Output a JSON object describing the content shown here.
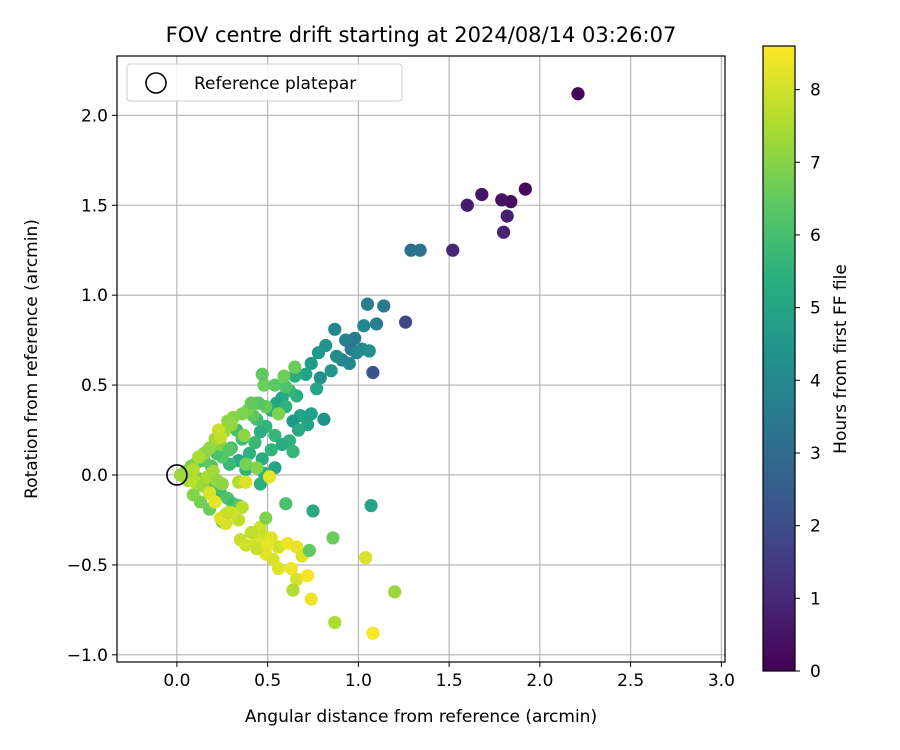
{
  "chart_data": {
    "type": "scatter",
    "title": "FOV centre drift starting at 2024/08/14 03:26:07",
    "xlabel": "Angular distance from reference (arcmin)",
    "ylabel": "Rotation from reference (arcmin)",
    "xlim": [
      -0.33,
      3.02
    ],
    "ylim": [
      -1.04,
      2.33
    ],
    "xticks": [
      "0.0",
      "0.5",
      "1.0",
      "1.5",
      "2.0",
      "2.5",
      "3.0"
    ],
    "yticks": [
      "−1.0",
      "−0.5",
      "0.0",
      "0.5",
      "1.0",
      "1.5",
      "2.0"
    ],
    "grid": true,
    "legend": {
      "placement": "top-left",
      "entries": [
        "Reference platepar"
      ]
    },
    "colorbar": {
      "label": "Hours from first FF file",
      "colormap": "viridis",
      "range": [
        0,
        8.6
      ],
      "ticks": [
        "0",
        "1",
        "2",
        "3",
        "4",
        "5",
        "6",
        "7",
        "8"
      ]
    },
    "reference_point": {
      "x": 0.0,
      "y": 0.0
    },
    "points": [
      [
        2.21,
        2.12,
        0.1
      ],
      [
        1.92,
        1.59,
        0.2
      ],
      [
        1.84,
        1.52,
        0.3
      ],
      [
        1.79,
        1.53,
        0.4
      ],
      [
        1.68,
        1.56,
        0.5
      ],
      [
        1.6,
        1.5,
        0.6
      ],
      [
        1.82,
        1.44,
        0.7
      ],
      [
        1.8,
        1.35,
        0.8
      ],
      [
        1.52,
        1.25,
        0.9
      ],
      [
        1.26,
        0.85,
        1.9
      ],
      [
        1.08,
        0.57,
        2.2
      ],
      [
        1.29,
        1.25,
        3.2
      ],
      [
        1.34,
        1.25,
        3.3
      ],
      [
        1.05,
        0.95,
        3.6
      ],
      [
        1.14,
        0.94,
        3.5
      ],
      [
        0.87,
        0.81,
        4.0
      ],
      [
        1.1,
        0.84,
        3.7
      ],
      [
        1.03,
        0.83,
        4.0
      ],
      [
        0.98,
        0.76,
        3.6
      ],
      [
        0.93,
        0.75,
        3.8
      ],
      [
        0.96,
        0.7,
        3.4
      ],
      [
        0.99,
        0.68,
        3.9
      ],
      [
        0.91,
        0.64,
        3.9
      ],
      [
        1.02,
        0.7,
        4.1
      ],
      [
        1.06,
        0.69,
        4.3
      ],
      [
        0.95,
        0.62,
        4.0
      ],
      [
        0.88,
        0.66,
        4.2
      ],
      [
        0.82,
        0.72,
        4.4
      ],
      [
        0.78,
        0.68,
        4.6
      ],
      [
        0.85,
        0.58,
        4.5
      ],
      [
        0.79,
        0.54,
        4.3
      ],
      [
        0.74,
        0.62,
        4.7
      ],
      [
        0.71,
        0.56,
        5.0
      ],
      [
        0.77,
        0.48,
        5.1
      ],
      [
        0.65,
        0.55,
        5.3
      ],
      [
        0.66,
        0.44,
        5.4
      ],
      [
        0.62,
        0.47,
        5.6
      ],
      [
        0.58,
        0.43,
        5.2
      ],
      [
        0.55,
        0.4,
        5.0
      ],
      [
        0.52,
        0.36,
        5.4
      ],
      [
        0.6,
        0.38,
        5.5
      ],
      [
        0.68,
        0.33,
        5.0
      ],
      [
        0.74,
        0.34,
        4.8
      ],
      [
        0.64,
        0.3,
        4.6
      ],
      [
        0.72,
        0.28,
        5.0
      ],
      [
        0.81,
        0.31,
        4.4
      ],
      [
        0.67,
        0.25,
        5.2
      ],
      [
        0.62,
        0.19,
        5.5
      ],
      [
        0.54,
        0.22,
        5.7
      ],
      [
        0.49,
        0.27,
        5.6
      ],
      [
        0.44,
        0.31,
        5.9
      ],
      [
        0.46,
        0.24,
        5.4
      ],
      [
        0.52,
        0.14,
        5.6
      ],
      [
        0.47,
        0.09,
        5.3
      ],
      [
        0.43,
        0.18,
        5.8
      ],
      [
        0.4,
        0.12,
        5.5
      ],
      [
        0.36,
        0.2,
        5.9
      ],
      [
        0.33,
        0.25,
        6.0
      ],
      [
        0.38,
        0.03,
        5.6
      ],
      [
        0.34,
        0.08,
        5.2
      ],
      [
        0.29,
        0.06,
        5.8
      ],
      [
        0.3,
        0.15,
        6.0
      ],
      [
        0.48,
        0.01,
        5.4
      ],
      [
        0.54,
        0.04,
        5.0
      ],
      [
        0.58,
        0.17,
        5.3
      ],
      [
        0.64,
        0.13,
        5.7
      ],
      [
        0.46,
        -0.05,
        5.4
      ],
      [
        0.25,
        0.1,
        6.3
      ],
      [
        0.22,
        0.12,
        6.1
      ],
      [
        0.19,
        0.05,
        6.2
      ],
      [
        0.15,
        0.08,
        6.5
      ],
      [
        0.11,
        0.07,
        6.3
      ],
      [
        0.08,
        0.05,
        6.8
      ],
      [
        0.05,
        0.02,
        7.0
      ],
      [
        0.12,
        -0.02,
        6.9
      ],
      [
        0.16,
        -0.05,
        6.6
      ],
      [
        0.2,
        -0.08,
        6.4
      ],
      [
        0.24,
        -0.1,
        6.0
      ],
      [
        0.28,
        -0.13,
        6.2
      ],
      [
        0.31,
        -0.16,
        5.9
      ],
      [
        0.34,
        -0.17,
        6.3
      ],
      [
        0.21,
        -0.14,
        5.8
      ],
      [
        0.18,
        -0.19,
        6.6
      ],
      [
        0.13,
        -0.15,
        6.8
      ],
      [
        0.09,
        -0.11,
        7.0
      ],
      [
        0.27,
        -0.22,
        6.5
      ],
      [
        0.25,
        -0.26,
        6.7
      ],
      [
        0.48,
        0.5,
        6.6
      ],
      [
        0.54,
        0.5,
        6.4
      ],
      [
        0.6,
        0.49,
        6.2
      ],
      [
        0.49,
        0.38,
        6.5
      ],
      [
        0.44,
        0.4,
        6.7
      ],
      [
        0.42,
        0.33,
        6.4
      ],
      [
        0.39,
        0.36,
        6.8
      ],
      [
        0.36,
        0.34,
        6.9
      ],
      [
        0.31,
        0.32,
        7.0
      ],
      [
        0.28,
        0.3,
        7.1
      ],
      [
        0.26,
        0.24,
        7.3
      ],
      [
        0.24,
        0.17,
        7.0
      ],
      [
        0.21,
        0.2,
        7.4
      ],
      [
        0.18,
        0.15,
        7.2
      ],
      [
        0.15,
        0.12,
        7.1
      ],
      [
        0.12,
        0.1,
        7.5
      ],
      [
        0.09,
        0.03,
        7.6
      ],
      [
        0.06,
        -0.03,
        7.4
      ],
      [
        0.1,
        -0.04,
        7.7
      ],
      [
        0.14,
        -0.06,
        7.3
      ],
      [
        0.17,
        -0.01,
        7.5
      ],
      [
        0.2,
        0.02,
        7.4
      ],
      [
        0.22,
        -0.03,
        7.2
      ],
      [
        0.25,
        -0.05,
        7.1
      ],
      [
        0.24,
        0.21,
        7.8
      ],
      [
        0.23,
        0.25,
        7.9
      ],
      [
        0.37,
        0.22,
        7.1
      ],
      [
        0.44,
        0.04,
        7.0
      ],
      [
        0.56,
        0.34,
        6.9
      ],
      [
        0.59,
        0.55,
        6.7
      ],
      [
        0.65,
        0.6,
        6.6
      ],
      [
        0.75,
        -0.2,
        5.2
      ],
      [
        1.07,
        -0.17,
        5.0
      ],
      [
        0.6,
        -0.16,
        6.1
      ],
      [
        0.38,
        0.06,
        6.8
      ],
      [
        0.34,
        -0.04,
        7.6
      ],
      [
        0.36,
        -0.18,
        7.7
      ],
      [
        0.34,
        -0.25,
        7.8
      ],
      [
        0.3,
        -0.21,
        8.0
      ],
      [
        0.27,
        -0.27,
        8.1
      ],
      [
        0.24,
        -0.24,
        8.2
      ],
      [
        0.18,
        -0.1,
        8.1
      ],
      [
        0.21,
        -0.15,
        8.3
      ],
      [
        0.38,
        -0.04,
        8.2
      ],
      [
        0.51,
        -0.01,
        8.3
      ],
      [
        0.46,
        -0.29,
        8.0
      ],
      [
        0.48,
        -0.34,
        7.9
      ],
      [
        0.44,
        -0.37,
        8.1
      ],
      [
        0.52,
        -0.35,
        8.2
      ],
      [
        0.56,
        -0.4,
        8.0
      ],
      [
        0.49,
        -0.44,
        8.3
      ],
      [
        0.53,
        -0.47,
        8.1
      ],
      [
        0.56,
        -0.52,
        8.2
      ],
      [
        0.61,
        -0.38,
        8.4
      ],
      [
        0.66,
        -0.4,
        8.3
      ],
      [
        0.69,
        -0.45,
        8.2
      ],
      [
        0.63,
        -0.52,
        8.4
      ],
      [
        0.66,
        -0.58,
        8.1
      ],
      [
        0.72,
        -0.56,
        8.5
      ],
      [
        0.64,
        -0.64,
        7.6
      ],
      [
        0.74,
        -0.69,
        8.4
      ],
      [
        0.86,
        -0.35,
        6.6
      ],
      [
        0.73,
        -0.42,
        6.5
      ],
      [
        1.04,
        -0.46,
        8.1
      ],
      [
        1.2,
        -0.65,
        7.3
      ],
      [
        0.87,
        -0.82,
        7.5
      ],
      [
        1.08,
        -0.88,
        8.5
      ],
      [
        0.35,
        -0.36,
        7.9
      ],
      [
        0.38,
        -0.39,
        8.0
      ],
      [
        0.49,
        -0.24,
        6.9
      ],
      [
        0.41,
        -0.32,
        7.8
      ],
      [
        0.28,
        -0.21,
        7.9
      ],
      [
        0.44,
        -0.41,
        7.9
      ],
      [
        0.5,
        -0.39,
        8.3
      ],
      [
        0.47,
        0.56,
        6.4
      ],
      [
        0.45,
        0.4,
        6.3
      ],
      [
        0.41,
        0.4,
        6.5
      ],
      [
        0.29,
        0.14,
        6.3
      ],
      [
        0.3,
        0.28,
        7.2
      ],
      [
        0.02,
        0.0,
        7.3
      ]
    ]
  }
}
